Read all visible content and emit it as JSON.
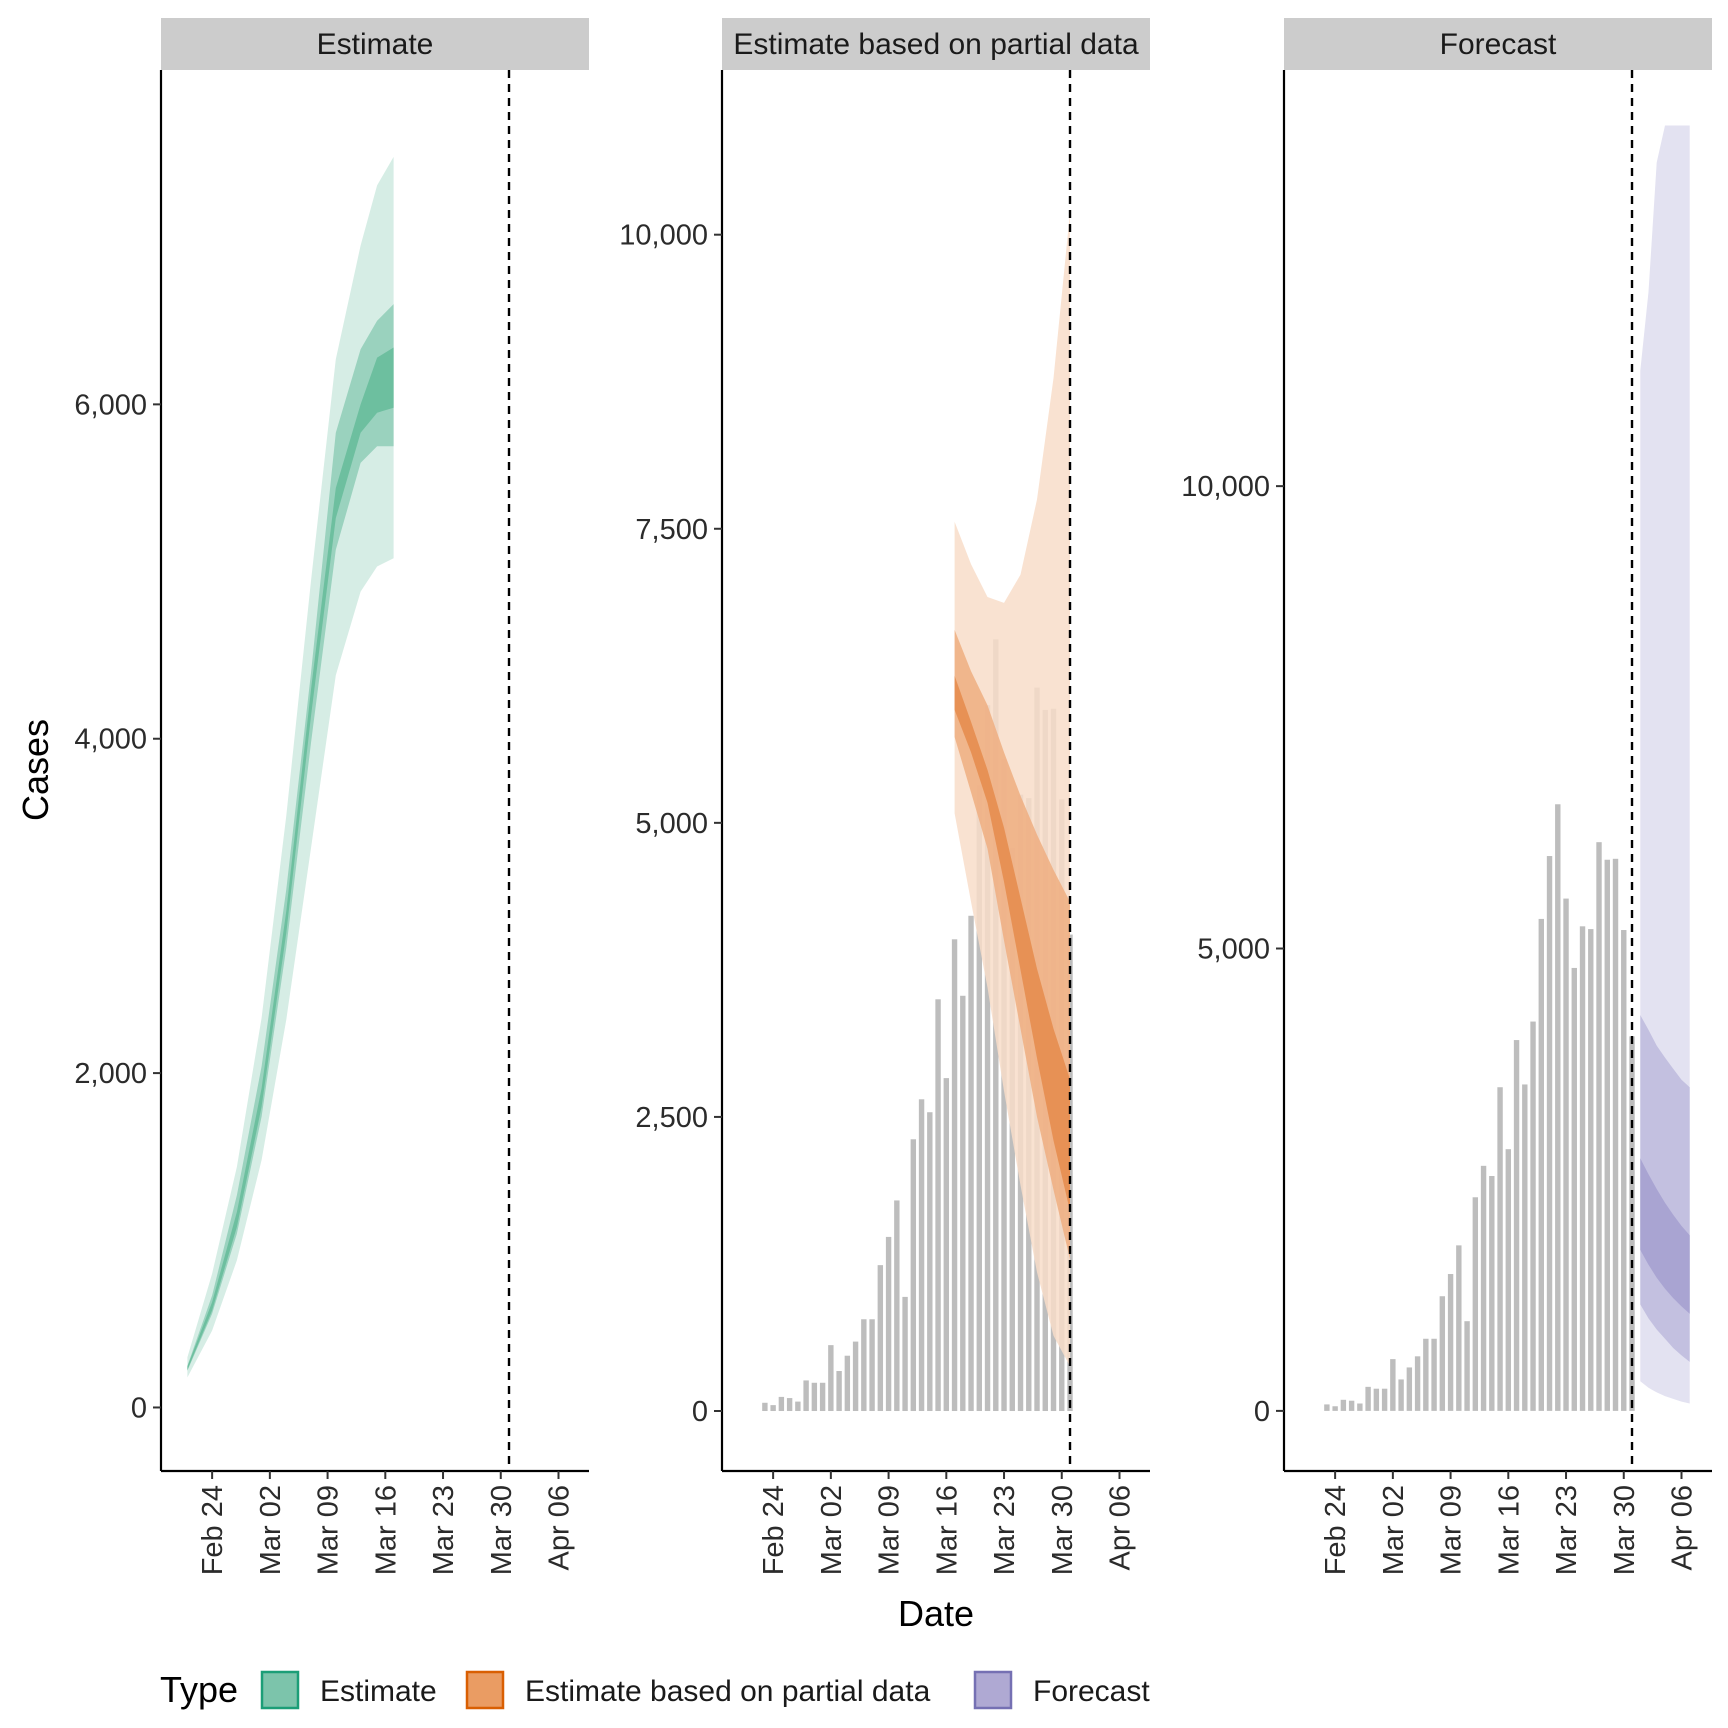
{
  "chart_data": {
    "type": "bar",
    "xlabel": "Date",
    "ylabel": "Cases",
    "x_tick_labels": [
      "Feb 24",
      "Mar 02",
      "Mar 09",
      "Mar 16",
      "Mar 23",
      "Mar 30",
      "Apr 06"
    ],
    "legend": {
      "title": "Type",
      "position": "bottom",
      "entries": [
        {
          "label": "Estimate",
          "fill": "#7cc4ab",
          "stroke": "#1b9e77"
        },
        {
          "label": "Estimate based on partial data",
          "fill": "#ea9c63",
          "stroke": "#d95f02"
        },
        {
          "label": "Forecast",
          "fill": "#afa9d3",
          "stroke": "#7570b3"
        }
      ]
    },
    "bar_color": "#bdbdbd",
    "cutoff_date": "2020-03-31",
    "reported_cases": {
      "dates": [
        "2020-02-23",
        "2020-02-24",
        "2020-02-25",
        "2020-02-26",
        "2020-02-27",
        "2020-02-28",
        "2020-02-29",
        "2020-03-01",
        "2020-03-02",
        "2020-03-03",
        "2020-03-04",
        "2020-03-05",
        "2020-03-06",
        "2020-03-07",
        "2020-03-08",
        "2020-03-09",
        "2020-03-10",
        "2020-03-11",
        "2020-03-12",
        "2020-03-13",
        "2020-03-14",
        "2020-03-15",
        "2020-03-16",
        "2020-03-17",
        "2020-03-18",
        "2020-03-19",
        "2020-03-20",
        "2020-03-21",
        "2020-03-22",
        "2020-03-23",
        "2020-03-24",
        "2020-03-25",
        "2020-03-26",
        "2020-03-27",
        "2020-03-28",
        "2020-03-29",
        "2020-03-30",
        "2020-03-31"
      ],
      "values": [
        70,
        50,
        120,
        110,
        80,
        260,
        240,
        240,
        560,
        340,
        470,
        590,
        780,
        780,
        1240,
        1480,
        1790,
        970,
        2310,
        2650,
        2540,
        3500,
        2830,
        4010,
        3530,
        4210,
        5320,
        6000,
        6560,
        5540,
        4790,
        5240,
        5210,
        6150,
        5960,
        5970,
        5200,
        4050
      ]
    },
    "panels": [
      {
        "title": "Estimate",
        "type_key": "Estimate",
        "ylim": [
          -380,
          8000
        ],
        "y_ticks": [
          0,
          2000,
          4000,
          6000
        ],
        "y_tick_labels": [
          "0",
          "2,000",
          "4,000",
          "6,000"
        ],
        "show_bars": false,
        "band_dates": [
          "2020-02-21",
          "2020-02-24",
          "2020-02-27",
          "2020-03-01",
          "2020-03-04",
          "2020-03-07",
          "2020-03-10",
          "2020-03-13",
          "2020-03-15",
          "2020-03-17"
        ],
        "bands": [
          {
            "name": "90%",
            "lower": [
              180,
              460,
              880,
              1480,
              2320,
              3350,
              4380,
              4880,
              5030,
              5080
            ],
            "upper": [
              300,
              800,
              1440,
              2330,
              3540,
              4950,
              6270,
              6950,
              7310,
              7480
            ]
          },
          {
            "name": "50%",
            "lower": [
              220,
              560,
              1040,
              1740,
              2750,
              3980,
              5130,
              5650,
              5750,
              5750
            ],
            "upper": [
              250,
              670,
              1270,
              2040,
              3100,
              4400,
              5830,
              6330,
              6500,
              6600
            ]
          },
          {
            "name": "20%",
            "lower": [
              225,
              580,
              1080,
              1800,
              2840,
              4140,
              5320,
              5830,
              5950,
              5980
            ],
            "upper": [
              245,
              630,
              1170,
              1910,
              2970,
              4300,
              5500,
              6000,
              6280,
              6340
            ]
          }
        ]
      },
      {
        "title": "Estimate based on partial data",
        "type_key": "Estimate based on partial data",
        "ylim": [
          -510,
          11400
        ],
        "y_ticks": [
          0,
          2500,
          5000,
          7500,
          10000
        ],
        "y_tick_labels": [
          "0",
          "2,500",
          "5,000",
          "7,500",
          "10,000"
        ],
        "show_bars": true,
        "band_dates": [
          "2020-03-17",
          "2020-03-19",
          "2020-03-21",
          "2020-03-23",
          "2020-03-25",
          "2020-03-27",
          "2020-03-29",
          "2020-03-31"
        ],
        "bands": [
          {
            "name": "90%",
            "lower": [
              5080,
              4330,
              3600,
              2720,
              1920,
              1180,
              640,
              380
            ],
            "upper": [
              7560,
              7200,
              6920,
              6870,
              7110,
              7750,
              8780,
              10190
            ]
          },
          {
            "name": "50%",
            "lower": [
              5730,
              5260,
              4780,
              4000,
              3250,
              2500,
              1880,
              1290
            ],
            "upper": [
              6640,
              6290,
              6000,
              5600,
              5230,
              4900,
              4600,
              4330
            ]
          },
          {
            "name": "20%",
            "lower": [
              5960,
              5600,
              5170,
              4500,
              3750,
              3000,
              2300,
              1700
            ],
            "upper": [
              6250,
              5860,
              5450,
              4960,
              4360,
              3760,
              3250,
              2820
            ]
          }
        ]
      },
      {
        "title": "Forecast",
        "type_key": "Forecast",
        "ylim": [
          -650,
          14500
        ],
        "y_ticks": [
          0,
          5000,
          10000
        ],
        "y_tick_labels": [
          "0",
          "5,000",
          "10,000"
        ],
        "show_bars": true,
        "band_dates": [
          "2020-04-01",
          "2020-04-02",
          "2020-04-03",
          "2020-04-04",
          "2020-04-05",
          "2020-04-06",
          "2020-04-07"
        ],
        "bands": [
          {
            "name": "90%",
            "lower": [
              320,
              250,
              200,
              160,
              130,
              100,
              80
            ],
            "upper": [
              11250,
              12100,
              13500,
              13900,
              13900,
              13900,
              13900
            ]
          },
          {
            "name": "50%",
            "lower": [
              1150,
              1000,
              880,
              780,
              680,
              600,
              530
            ],
            "upper": [
              4280,
              4120,
              3950,
              3820,
              3700,
              3580,
              3500
            ]
          },
          {
            "name": "20%",
            "lower": [
              1740,
              1580,
              1440,
              1320,
              1220,
              1130,
              1050
            ],
            "upper": [
              2730,
              2560,
              2400,
              2250,
              2120,
              2000,
              1900
            ]
          }
        ]
      }
    ]
  },
  "colors": {
    "Estimate": [
      "#d6ede5",
      "#9ad2be",
      "#6dbf9f"
    ],
    "Estimate based on partial data": [
      "#f8ddc9",
      "#eeae80",
      "#e58b4b"
    ],
    "Forecast": [
      "#e3e2f1",
      "#c3c0e0",
      "#a9a4d2"
    ]
  }
}
